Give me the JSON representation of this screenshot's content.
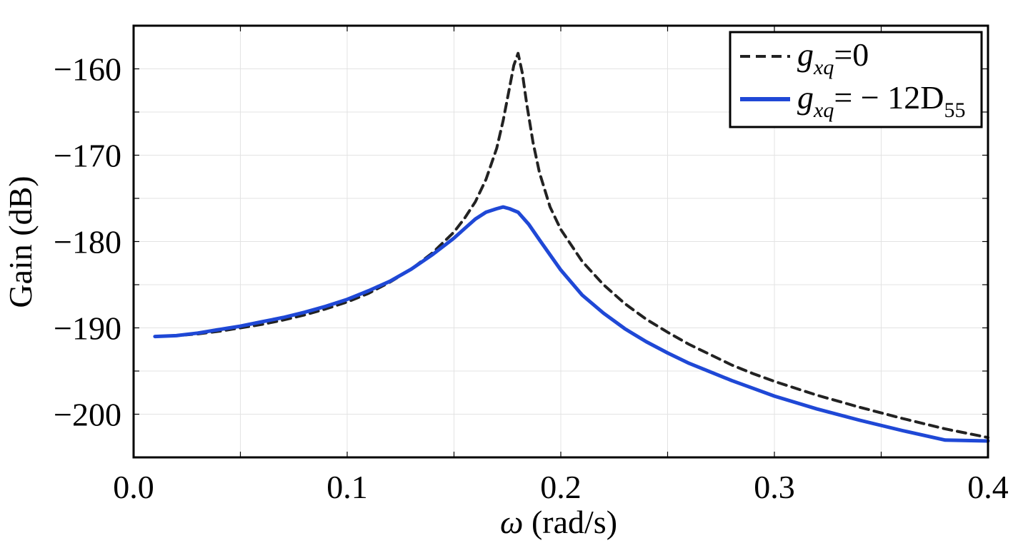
{
  "chart_data": {
    "type": "line",
    "title": "",
    "xlabel_symbol": "ω",
    "xlabel_unit": " (rad/s)",
    "ylabel": "Gain (dB)",
    "xlim": [
      0.0,
      0.4
    ],
    "ylim": [
      -205,
      -155
    ],
    "x_ticks": [
      0.0,
      0.1,
      0.2,
      0.3,
      0.4
    ],
    "x_tick_labels": [
      "0.0",
      "0.1",
      "0.2",
      "0.3",
      "0.4"
    ],
    "y_ticks": [
      -160,
      -170,
      -180,
      -190,
      -200
    ],
    "y_tick_labels": [
      "−160",
      "−170",
      "−180",
      "−190",
      "−200"
    ],
    "grid": true,
    "legend_position": "top-right",
    "series": [
      {
        "legend_main": "g",
        "legend_sub": "xq",
        "legend_rest": "=0",
        "legend_sub2": "",
        "color": "#222222",
        "dash": "dashed",
        "x": [
          0.01,
          0.02,
          0.03,
          0.04,
          0.05,
          0.06,
          0.07,
          0.08,
          0.09,
          0.1,
          0.11,
          0.12,
          0.13,
          0.14,
          0.15,
          0.155,
          0.16,
          0.165,
          0.17,
          0.173,
          0.176,
          0.178,
          0.18,
          0.182,
          0.184,
          0.187,
          0.19,
          0.195,
          0.2,
          0.21,
          0.22,
          0.23,
          0.24,
          0.25,
          0.26,
          0.27,
          0.28,
          0.29,
          0.3,
          0.32,
          0.34,
          0.36,
          0.38,
          0.4
        ],
        "y": [
          -191.0,
          -190.9,
          -190.7,
          -190.4,
          -190.0,
          -189.6,
          -189.1,
          -188.5,
          -187.8,
          -187.0,
          -186.0,
          -184.7,
          -183.2,
          -181.3,
          -178.9,
          -177.3,
          -175.4,
          -172.8,
          -169.2,
          -166.0,
          -162.2,
          -159.6,
          -158.2,
          -160.5,
          -164.0,
          -168.5,
          -172.0,
          -176.0,
          -178.6,
          -182.3,
          -185.0,
          -187.2,
          -189.0,
          -190.5,
          -191.9,
          -193.1,
          -194.3,
          -195.3,
          -196.2,
          -197.8,
          -199.2,
          -200.5,
          -201.7,
          -202.7
        ]
      },
      {
        "legend_main": "g",
        "legend_sub": "xq",
        "legend_rest": "= − 12D",
        "legend_sub2": "55",
        "color": "#1f48d6",
        "dash": "solid",
        "x": [
          0.01,
          0.02,
          0.03,
          0.04,
          0.05,
          0.06,
          0.07,
          0.08,
          0.09,
          0.1,
          0.11,
          0.12,
          0.13,
          0.14,
          0.15,
          0.155,
          0.16,
          0.165,
          0.17,
          0.173,
          0.176,
          0.18,
          0.185,
          0.19,
          0.2,
          0.21,
          0.22,
          0.23,
          0.24,
          0.25,
          0.26,
          0.27,
          0.28,
          0.29,
          0.3,
          0.32,
          0.34,
          0.36,
          0.38,
          0.4
        ],
        "y": [
          -191.0,
          -190.9,
          -190.6,
          -190.2,
          -189.8,
          -189.3,
          -188.8,
          -188.2,
          -187.5,
          -186.7,
          -185.7,
          -184.6,
          -183.2,
          -181.5,
          -179.6,
          -178.5,
          -177.4,
          -176.6,
          -176.2,
          -176.0,
          -176.2,
          -176.6,
          -178.0,
          -179.8,
          -183.3,
          -186.2,
          -188.3,
          -190.1,
          -191.6,
          -192.9,
          -194.1,
          -195.1,
          -196.1,
          -197.0,
          -197.9,
          -199.4,
          -200.7,
          -201.9,
          -203.0,
          -203.1
        ]
      }
    ]
  }
}
